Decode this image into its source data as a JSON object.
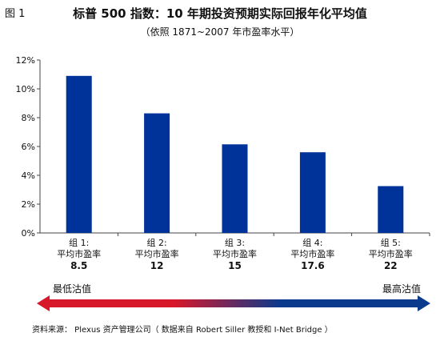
{
  "figure_label": "图 1",
  "title": "标普 500 指数：10 年期投资预期实际回报年化平均值",
  "subtitle": "（依照 1871~2007 年市盈率水平）",
  "chart_data": {
    "type": "bar",
    "title": "标普 500 指数：10 年期投资预期实际回报年化平均值",
    "subtitle": "（依照 1871~2007 年市盈率水平）",
    "categories": [
      {
        "group": "组 1:",
        "label": "平均市盈率",
        "pe": "8.5"
      },
      {
        "group": "组 2:",
        "label": "平均市盈率",
        "pe": "12"
      },
      {
        "group": "组 3:",
        "label": "平均市盈率",
        "pe": "15"
      },
      {
        "group": "组 4:",
        "label": "平均市盈率",
        "pe": "17.6"
      },
      {
        "group": "组 5:",
        "label": "平均市盈率",
        "pe": "22"
      }
    ],
    "values": [
      10.9,
      8.3,
      6.15,
      5.6,
      3.25
    ],
    "ylim": [
      0,
      12
    ],
    "yticks": [
      0,
      2,
      4,
      6,
      8,
      10,
      12
    ],
    "ytick_labels": [
      "0%",
      "2%",
      "4%",
      "6%",
      "8%",
      "10%",
      "12%"
    ],
    "xlabel": "",
    "ylabel": "",
    "grid": false,
    "bar_color": "#003399"
  },
  "arrow": {
    "left_label": "最低沽值",
    "right_label": "最高沽值",
    "left_color": "#d7182a",
    "right_color": "#0a3a8c"
  },
  "source": "资料来源： Plexus 资产管理公司（ 数据来自 Robert Siller 教授和 I-Net Bridge ）"
}
